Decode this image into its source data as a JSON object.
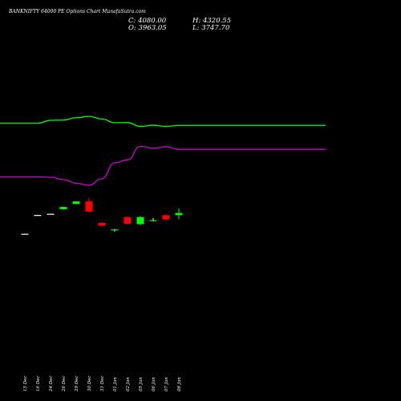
{
  "header": {
    "title": "BANKNIFTY 64000  PE Options  Chart MunafaSutra.com"
  },
  "ohlc": {
    "close": "C: 4080.00",
    "open": "O: 3963.05",
    "high": "H: 4320.55",
    "low": "L: 3747.70"
  },
  "colors": {
    "background": "#000000",
    "up": "#00ff00",
    "down": "#ff0000",
    "upper_band": "#00ff00",
    "middle_line": "#cc00cc",
    "neutral": "#ffffff"
  },
  "chart_data": {
    "type": "candlestick",
    "categories": [
      "15 Dec",
      "16 Dec",
      "24 Dec",
      "26 Dec",
      "29 Dec",
      "30 Dec",
      "31 Dec",
      "01 Jan",
      "02 Jan",
      "05 Jan",
      "06 Jan",
      "07 Jan",
      "08 Jan"
    ],
    "candles": [
      {
        "open": 2960,
        "high": 2965,
        "low": 2955,
        "close": 2958,
        "dir": "flat"
      },
      {
        "open": 3970,
        "high": 3975,
        "low": 3965,
        "close": 3972,
        "dir": "flat"
      },
      {
        "open": 4030,
        "high": 4040,
        "low": 4020,
        "close": 4035,
        "dir": "flat"
      },
      {
        "open": 4280,
        "high": 4420,
        "low": 4260,
        "close": 4400,
        "dir": "up"
      },
      {
        "open": 4560,
        "high": 4720,
        "low": 4550,
        "close": 4700,
        "dir": "up"
      },
      {
        "open": 4700,
        "high": 4900,
        "low": 4120,
        "close": 4150,
        "dir": "down"
      },
      {
        "open": 3550,
        "high": 3600,
        "low": 3350,
        "close": 3400,
        "dir": "down"
      },
      {
        "open": 3200,
        "high": 3220,
        "low": 3080,
        "close": 3150,
        "dir": "flat"
      },
      {
        "open": 3850,
        "high": 3900,
        "low": 3480,
        "close": 3500,
        "dir": "down"
      },
      {
        "open": 3480,
        "high": 3900,
        "low": 3420,
        "close": 3860,
        "dir": "up"
      },
      {
        "open": 3670,
        "high": 3800,
        "low": 3620,
        "close": 3690,
        "dir": "flat"
      },
      {
        "open": 3960,
        "high": 3990,
        "low": 3700,
        "close": 3730,
        "dir": "down"
      },
      {
        "open": 3963.05,
        "high": 4320.55,
        "low": 3747.7,
        "close": 4080,
        "dir": "up"
      }
    ],
    "upper_band": [
      [
        0,
        8900
      ],
      [
        1,
        8900
      ],
      [
        2,
        9060
      ],
      [
        3,
        9070
      ],
      [
        4,
        9200
      ],
      [
        5,
        9270
      ],
      [
        6,
        9130
      ],
      [
        7,
        8930
      ],
      [
        8,
        8940
      ],
      [
        9,
        8730
      ],
      [
        10,
        8800
      ],
      [
        11,
        8730
      ],
      [
        12,
        8790
      ]
    ],
    "middle_line": [
      [
        0,
        6020
      ],
      [
        1,
        6020
      ],
      [
        2,
        6000
      ],
      [
        3,
        5870
      ],
      [
        4,
        5680
      ],
      [
        5,
        5570
      ],
      [
        6,
        5920
      ],
      [
        7,
        6770
      ],
      [
        8,
        6930
      ],
      [
        9,
        7660
      ],
      [
        10,
        7560
      ],
      [
        11,
        7640
      ],
      [
        12,
        7500
      ]
    ]
  }
}
